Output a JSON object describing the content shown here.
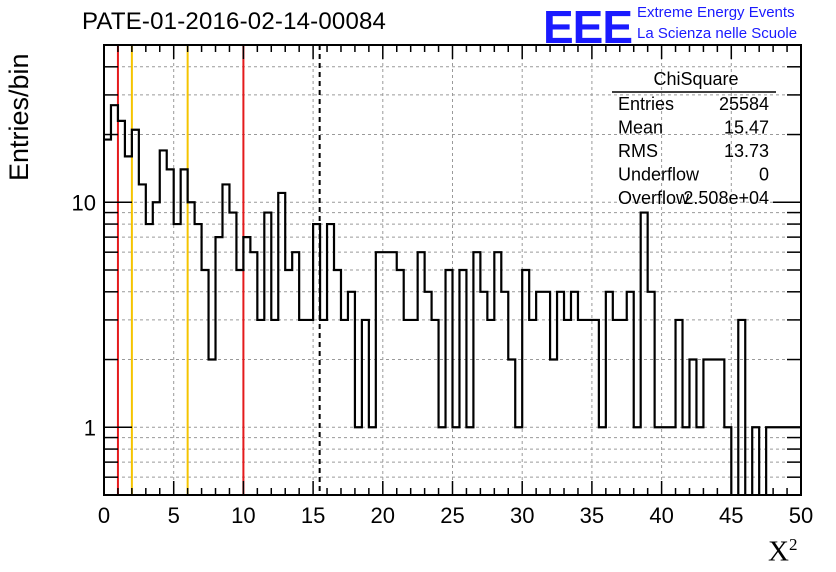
{
  "header": {
    "title": "PATE-01-2016-02-14-00084",
    "logo_text": "EEE",
    "logo_line1": "Extreme Energy Events",
    "logo_line2": "La Scienza nelle Scuole"
  },
  "colors": {
    "histogram": "#000000",
    "red_line": "#e41a1c",
    "yellow_line": "#f5c400",
    "logo": "#1a1aff",
    "grid": "#9a9a9a"
  },
  "stats": {
    "title": "ChiSquare",
    "rows": [
      {
        "label": "Entries",
        "value": "25584"
      },
      {
        "label": "Mean",
        "value": "15.47"
      },
      {
        "label": "RMS",
        "value": "13.73"
      },
      {
        "label": "Underflow",
        "value": "0"
      },
      {
        "label": "Overflow",
        "value": "2.508e+04"
      }
    ]
  },
  "chart_data": {
    "type": "histogram",
    "xlabel": "X",
    "xlabel_sup": "2",
    "ylabel": "Entries/bin",
    "xlim": [
      0,
      50
    ],
    "ylim": [
      0.5,
      50
    ],
    "yscale": "log",
    "grid": true,
    "bin_width": 0.5,
    "x_ticks": [
      "0",
      "5",
      "10",
      "15",
      "20",
      "25",
      "30",
      "35",
      "40",
      "45",
      "50"
    ],
    "y_ticks": [
      "1",
      "10"
    ],
    "values": [
      19,
      27,
      23,
      16,
      21,
      12,
      8,
      10,
      17,
      14,
      8,
      14,
      10,
      8,
      5,
      2,
      7,
      12,
      9,
      5,
      7,
      6,
      3,
      9,
      3,
      11,
      5,
      6,
      3,
      3,
      8,
      3,
      8,
      5,
      3,
      4,
      1,
      3,
      1,
      6,
      6,
      6,
      5,
      3,
      3,
      6,
      4,
      3,
      1,
      5,
      1,
      5,
      1,
      6,
      4,
      3,
      6,
      4,
      2,
      1,
      5,
      3,
      4,
      4,
      2,
      4,
      3,
      4,
      3,
      3,
      3,
      1,
      4,
      3,
      3,
      4,
      1,
      9,
      4,
      1,
      1,
      1,
      3,
      1,
      2,
      1,
      2,
      2,
      2,
      1,
      0,
      3,
      0,
      1,
      0,
      1,
      1,
      1,
      1,
      1
    ],
    "vlines": [
      {
        "x": 1,
        "color": "red",
        "style": "solid"
      },
      {
        "x": 2,
        "color": "yellow",
        "style": "solid"
      },
      {
        "x": 6,
        "color": "yellow",
        "style": "solid"
      },
      {
        "x": 10,
        "color": "red",
        "style": "solid"
      },
      {
        "x": 15.47,
        "color": "black",
        "style": "dashed"
      }
    ]
  }
}
